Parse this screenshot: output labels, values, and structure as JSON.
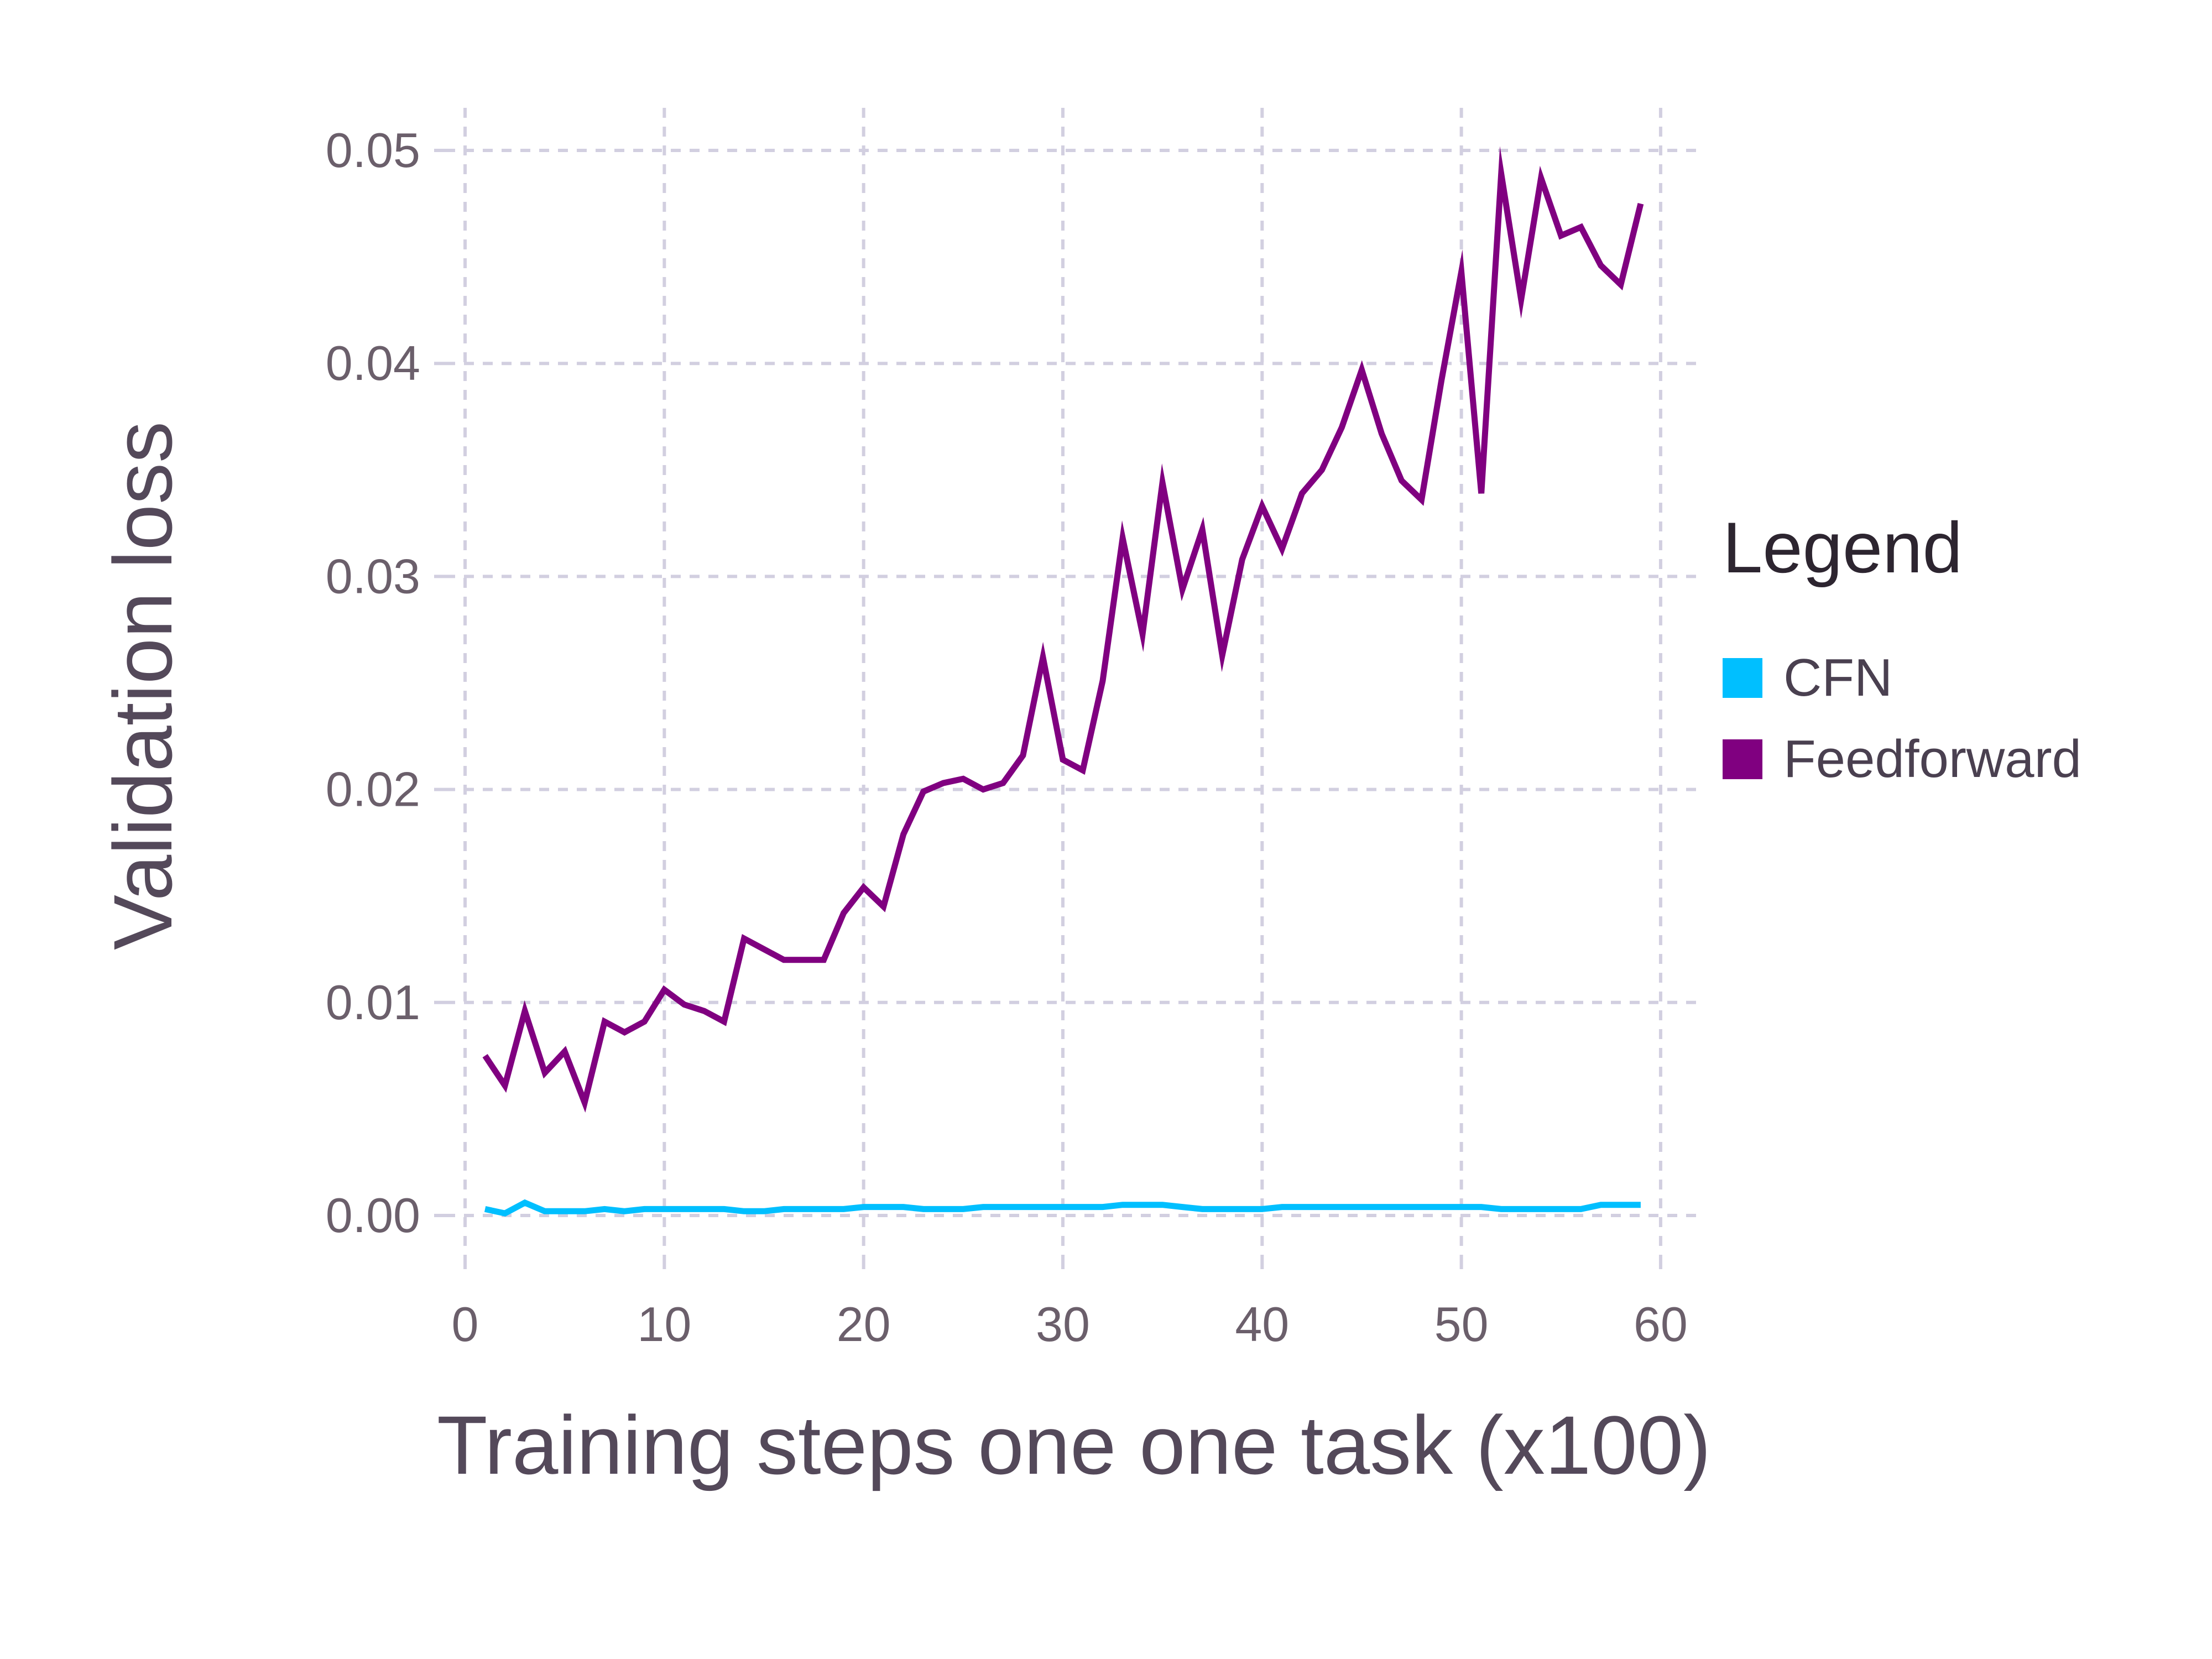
{
  "chart_data": {
    "type": "line",
    "title": "",
    "xlabel": "Training steps one one task (x100)",
    "ylabel": "Validation loss",
    "xlim": [
      -1,
      62
    ],
    "ylim": [
      -0.002,
      0.052
    ],
    "x_ticks": [
      0,
      10,
      20,
      30,
      40,
      50,
      60
    ],
    "x_tick_labels": [
      "0",
      "10",
      "20",
      "30",
      "40",
      "50",
      "60"
    ],
    "y_ticks": [
      0,
      0.01,
      0.02,
      0.03,
      0.04,
      0.05
    ],
    "y_tick_labels": [
      "0.00",
      "0.01",
      "0.02",
      "0.03",
      "0.04",
      "0.05"
    ],
    "grid": true,
    "legend": {
      "title": "Legend",
      "placement": "right"
    },
    "x": [
      1,
      2,
      3,
      4,
      5,
      6,
      7,
      8,
      9,
      10,
      11,
      12,
      13,
      14,
      15,
      16,
      17,
      18,
      19,
      20,
      21,
      22,
      23,
      24,
      25,
      26,
      27,
      28,
      29,
      30,
      31,
      32,
      33,
      34,
      35,
      36,
      37,
      38,
      39,
      40,
      41,
      42,
      43,
      44,
      45,
      46,
      47,
      48,
      49,
      50,
      51,
      52,
      53,
      54,
      55,
      56,
      57,
      58,
      59
    ],
    "series": [
      {
        "name": "CFN",
        "color": "#00bfff",
        "values": [
          0.0003,
          0.0001,
          0.0006,
          0.0002,
          0.0002,
          0.0002,
          0.0003,
          0.0002,
          0.0003,
          0.0003,
          0.0003,
          0.0003,
          0.0003,
          0.0002,
          0.0002,
          0.0003,
          0.0003,
          0.0003,
          0.0003,
          0.0004,
          0.0004,
          0.0004,
          0.0003,
          0.0003,
          0.0003,
          0.0004,
          0.0004,
          0.0004,
          0.0004,
          0.0004,
          0.0004,
          0.0004,
          0.0005,
          0.0005,
          0.0005,
          0.0004,
          0.0003,
          0.0003,
          0.0003,
          0.0003,
          0.0004,
          0.0004,
          0.0004,
          0.0004,
          0.0004,
          0.0004,
          0.0004,
          0.0004,
          0.0004,
          0.0004,
          0.0004,
          0.0003,
          0.0003,
          0.0003,
          0.0003,
          0.0003,
          0.0005,
          0.0005,
          0.0005
        ]
      },
      {
        "name": "Feedforward",
        "color": "#800080",
        "values": [
          0.0075,
          0.0061,
          0.0096,
          0.0067,
          0.0077,
          0.0053,
          0.0091,
          0.0086,
          0.0091,
          0.0106,
          0.0099,
          0.0096,
          0.0091,
          0.013,
          0.0125,
          0.012,
          0.012,
          0.012,
          0.0142,
          0.0154,
          0.0145,
          0.0179,
          0.0199,
          0.0203,
          0.0205,
          0.02,
          0.0203,
          0.0216,
          0.0262,
          0.0214,
          0.0209,
          0.0251,
          0.0318,
          0.0273,
          0.0344,
          0.0294,
          0.0322,
          0.0263,
          0.0308,
          0.0333,
          0.0313,
          0.0339,
          0.035,
          0.037,
          0.0397,
          0.0367,
          0.0345,
          0.0336,
          0.0392,
          0.0443,
          0.0339,
          0.0489,
          0.043,
          0.0487,
          0.046,
          0.0464,
          0.0446,
          0.0437,
          0.0475
        ]
      }
    ]
  }
}
